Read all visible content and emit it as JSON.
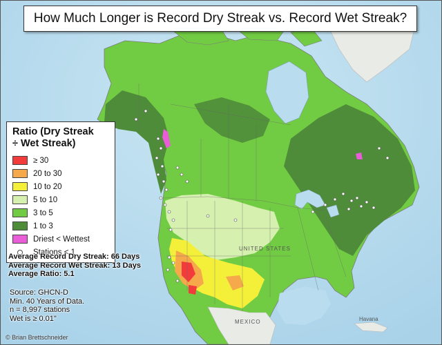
{
  "title": "How Much Longer is Record Dry Streak vs. Record Wet Streak?",
  "legend": {
    "title_line1": "Ratio (Dry Streak",
    "title_line2": "÷ Wet Streak)",
    "items": [
      {
        "label": "≥ 30",
        "color": "#f23c3c"
      },
      {
        "label": "20 to 30",
        "color": "#f5a94a"
      },
      {
        "label": "10 to 20",
        "color": "#f4f03a"
      },
      {
        "label": "5 to 10",
        "color": "#d6f0b0"
      },
      {
        "label": "3 to 5",
        "color": "#72cc43"
      },
      {
        "label": "1 to 3",
        "color": "#4e8c3a"
      },
      {
        "label": "Driest < Wettest",
        "color": "#e95ed8"
      }
    ],
    "stations_label": "Stations < 1"
  },
  "stats": {
    "line1": "Average Record Dry Streak: 66 Days",
    "line2": "Average Record Wet Streak: 13 Days",
    "line3": "Average Ratio: 5.1"
  },
  "source": {
    "line1": "Source: GHCN-D",
    "line2": "Min. 40 Years of Data.",
    "line3": "n = 8,997 stations",
    "line4": "Wet is ≥ 0.01\""
  },
  "credit": "© Brian Brettschneider",
  "places": {
    "usa": "UNITED STATES",
    "mexico": "MEXICO",
    "havana": "Havana"
  }
}
